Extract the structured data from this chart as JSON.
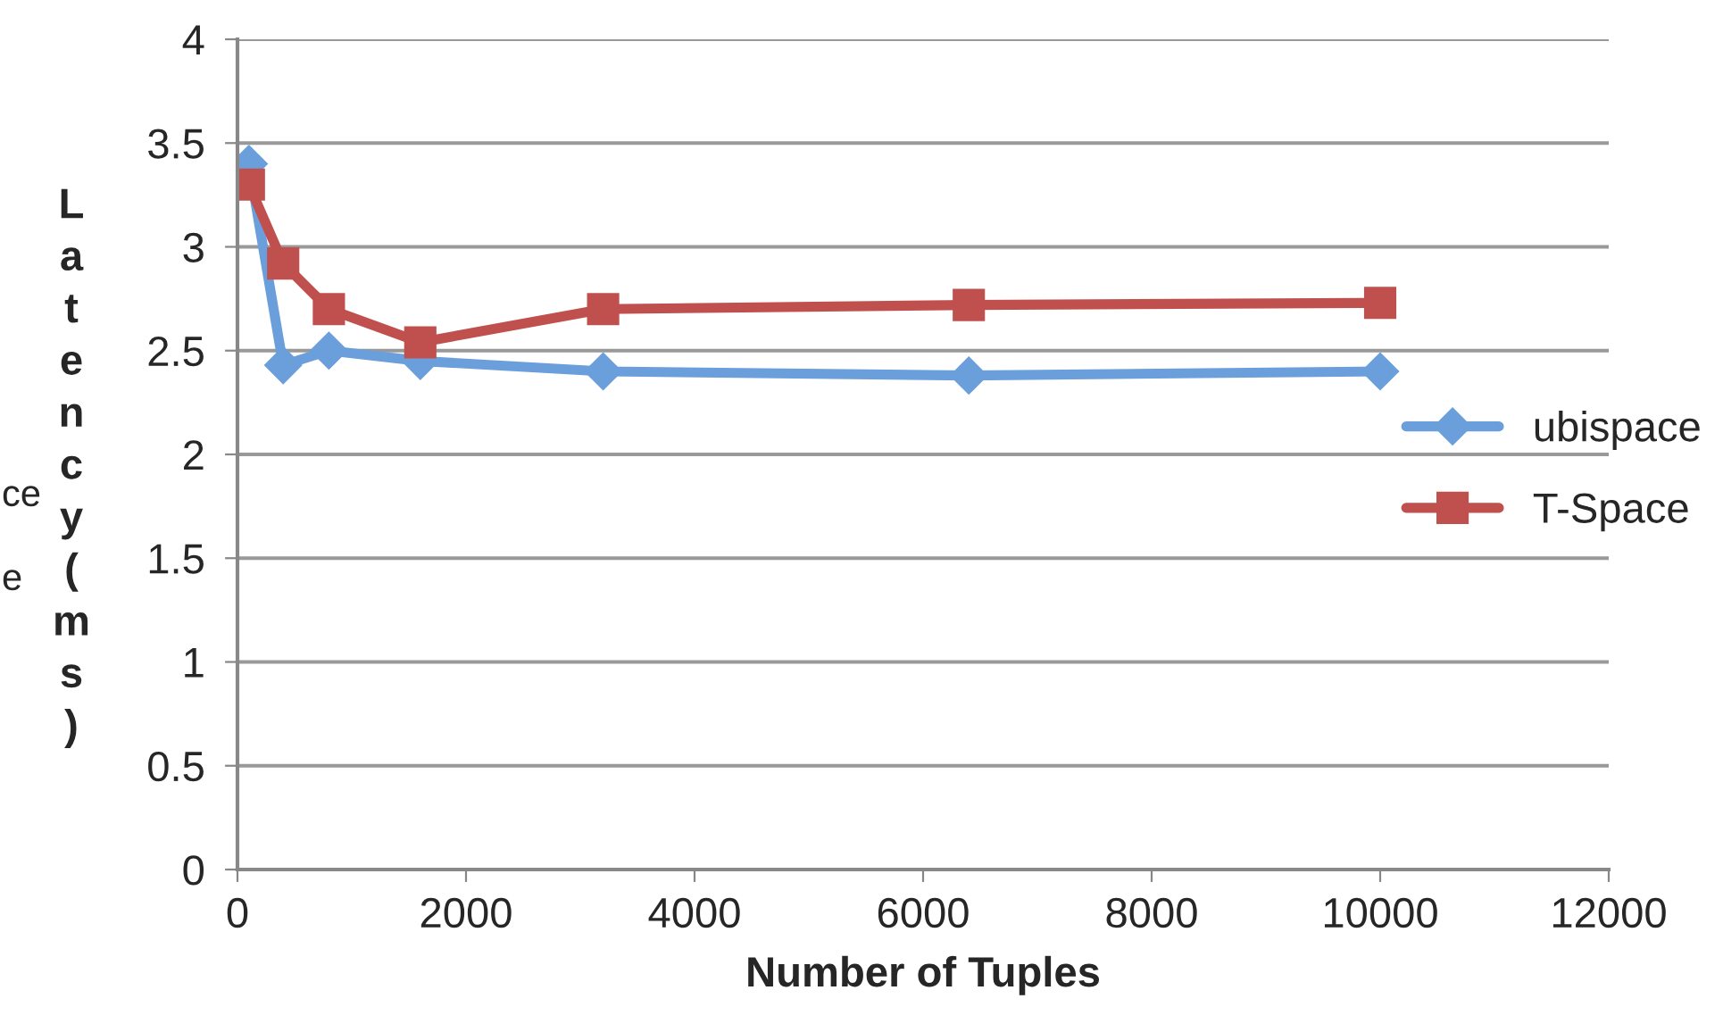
{
  "chart_data": {
    "type": "line",
    "xlabel": "Number of Tuples",
    "ylabel": "Latency (ms)",
    "annotations": [
      "ce",
      "e"
    ],
    "x": [
      100,
      400,
      800,
      1600,
      3200,
      6400,
      10000
    ],
    "series": [
      {
        "name": "ubispace",
        "color": "#6a9fdc",
        "marker": "diamond",
        "values": [
          3.4,
          2.43,
          2.5,
          2.45,
          2.4,
          2.38,
          2.4
        ]
      },
      {
        "name": "T-Space",
        "color": "#c0504d",
        "marker": "square",
        "values": [
          3.3,
          2.92,
          2.7,
          2.54,
          2.7,
          2.72,
          2.73
        ]
      }
    ],
    "xlim": [
      0,
      12000
    ],
    "xticks": [
      0,
      2000,
      4000,
      6000,
      8000,
      10000,
      12000
    ],
    "ylim": [
      0,
      4
    ],
    "yticks": [
      0,
      0.5,
      1,
      1.5,
      2,
      2.5,
      3,
      3.5,
      4
    ],
    "grid": "y",
    "legend": "right",
    "line_style": "solid"
  }
}
